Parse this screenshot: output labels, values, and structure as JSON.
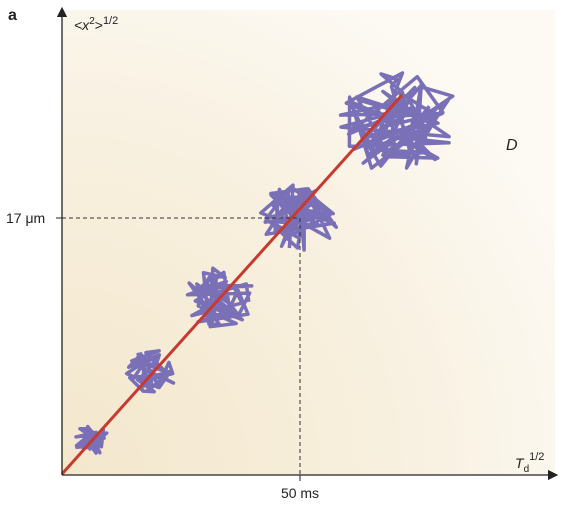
{
  "panel_label": "a",
  "y_axis": {
    "base": "<x",
    "square": "2",
    "close": ">",
    "power": "1/2"
  },
  "x_axis": {
    "base": "T",
    "subscript": "d",
    "power": "1/2"
  },
  "y_marker": "17 μm",
  "x_marker": "50 ms",
  "curve_label": "D"
}
